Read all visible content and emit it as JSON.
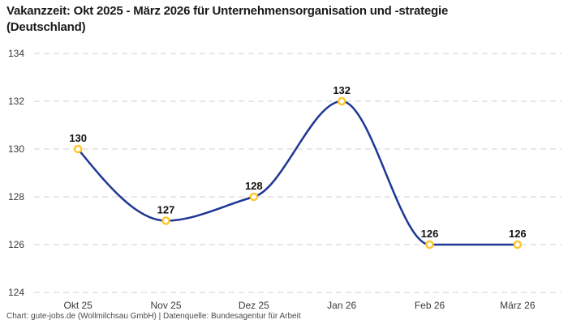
{
  "header": {
    "title": "Vakanzzeit: Okt 2025 - März 2026 für Unternehmensorganisation und -strategie (Deutschland)"
  },
  "footer": {
    "attribution": "Chart: gute-jobs.de (Wollmilchsau GmbH) | Datenquelle: Bundesagentur für Arbeit"
  },
  "chart_data": {
    "type": "line",
    "title": "Vakanzzeit: Okt 2025 - März 2026 für Unternehmensorganisation und -strategie (Deutschland)",
    "categories": [
      "Okt 25",
      "Nov 25",
      "Dez 25",
      "Jan 26",
      "Feb 26",
      "März 26"
    ],
    "values": [
      130,
      127,
      128,
      132,
      126,
      126
    ],
    "point_labels": [
      "130",
      "127",
      "128",
      "132",
      "126",
      "126"
    ],
    "xlabel": "",
    "ylabel": "",
    "ylim": [
      124,
      134
    ],
    "yticks": [
      124,
      126,
      128,
      130,
      132,
      134
    ],
    "grid": "horizontal-dashed",
    "legend": "none",
    "curve": "monotone",
    "colors": {
      "line": "#1f3795",
      "marker_stroke": "#fdc72f",
      "marker_fill": "#ffffff",
      "grid": "#cfcfcf",
      "value_label": "#111111",
      "tick_label": "#3a3a3a"
    }
  }
}
